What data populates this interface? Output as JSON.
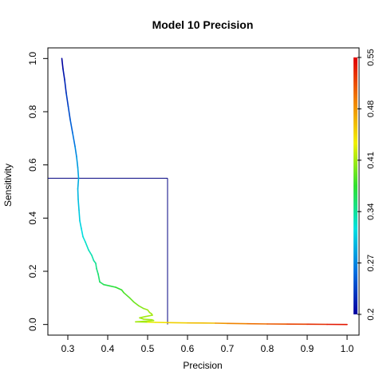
{
  "chart_data": {
    "type": "line",
    "title": "Model 10 Precision",
    "xlabel": "Precision",
    "ylabel": "Sensitivity",
    "xlim": [
      0.25,
      1.03
    ],
    "ylim": [
      -0.04,
      1.04
    ],
    "xticks": [
      0.3,
      0.4,
      0.5,
      0.6,
      0.7,
      0.8,
      0.9,
      1.0
    ],
    "xtick_labels": [
      "0.3",
      "0.4",
      "0.5",
      "0.6",
      "0.7",
      "0.8",
      "0.9",
      "1.0"
    ],
    "yticks": [
      0.0,
      0.2,
      0.4,
      0.6,
      0.8,
      1.0
    ],
    "ytick_labels": [
      "0.0",
      "0.2",
      "0.4",
      "0.6",
      "0.8",
      "1.0"
    ],
    "grid": false,
    "colorbar": {
      "position": "right",
      "range": [
        0.2,
        0.55
      ],
      "ticks": [
        0.2,
        0.27,
        0.34,
        0.41,
        0.48,
        0.55
      ],
      "tick_labels": [
        "0.2",
        "0.27",
        "0.34",
        "0.41",
        "0.48",
        "0.55"
      ],
      "colors": [
        "#0000a0",
        "#0070e0",
        "#00e0e0",
        "#30e030",
        "#f0f000",
        "#f08000",
        "#e00000"
      ]
    },
    "reference_lines": [
      {
        "name": "hline",
        "x": [
          0.25,
          0.55
        ],
        "y": [
          0.55,
          0.55
        ],
        "color": "#000080"
      },
      {
        "name": "vline",
        "x": [
          0.55,
          0.55
        ],
        "y": [
          0.0,
          0.55
        ],
        "color": "#000080"
      }
    ],
    "series": [
      {
        "x": [
          0.285,
          0.288,
          0.292,
          0.296,
          0.301,
          0.306,
          0.312,
          0.318,
          0.322,
          0.325,
          0.327,
          0.325,
          0.326,
          0.328,
          0.33,
          0.334,
          0.338,
          0.344,
          0.352,
          0.36,
          0.365,
          0.37,
          0.372,
          0.376,
          0.38,
          0.39,
          0.405,
          0.42,
          0.435,
          0.44,
          0.455,
          0.465,
          0.478,
          0.49,
          0.5,
          0.505,
          0.51,
          0.512,
          0.495,
          0.48,
          0.49,
          0.51,
          0.515,
          0.49,
          0.47,
          0.5,
          0.52,
          0.55,
          0.6,
          0.67,
          0.7,
          0.75,
          0.8,
          0.85,
          0.9,
          0.95,
          1.0
        ],
        "y": [
          1.0,
          0.96,
          0.92,
          0.87,
          0.82,
          0.77,
          0.72,
          0.67,
          0.63,
          0.59,
          0.55,
          0.51,
          0.47,
          0.43,
          0.39,
          0.36,
          0.33,
          0.31,
          0.28,
          0.26,
          0.24,
          0.23,
          0.21,
          0.19,
          0.16,
          0.15,
          0.145,
          0.14,
          0.13,
          0.12,
          0.1,
          0.085,
          0.07,
          0.06,
          0.055,
          0.045,
          0.04,
          0.035,
          0.03,
          0.025,
          0.02,
          0.018,
          0.015,
          0.012,
          0.01,
          0.009,
          0.008,
          0.007,
          0.006,
          0.005,
          0.004,
          0.003,
          0.002,
          0.0015,
          0.001,
          0.0005,
          0.0
        ],
        "thresholds": [
          0.2,
          0.21,
          0.22,
          0.23,
          0.24,
          0.25,
          0.26,
          0.27,
          0.28,
          0.285,
          0.29,
          0.295,
          0.3,
          0.305,
          0.31,
          0.315,
          0.32,
          0.325,
          0.33,
          0.335,
          0.34,
          0.345,
          0.35,
          0.355,
          0.36,
          0.365,
          0.37,
          0.375,
          0.38,
          0.385,
          0.39,
          0.395,
          0.4,
          0.405,
          0.41,
          0.41,
          0.41,
          0.41,
          0.41,
          0.41,
          0.41,
          0.41,
          0.41,
          0.41,
          0.41,
          0.43,
          0.44,
          0.45,
          0.46,
          0.48,
          0.49,
          0.5,
          0.51,
          0.52,
          0.53,
          0.54,
          0.55
        ]
      }
    ]
  }
}
